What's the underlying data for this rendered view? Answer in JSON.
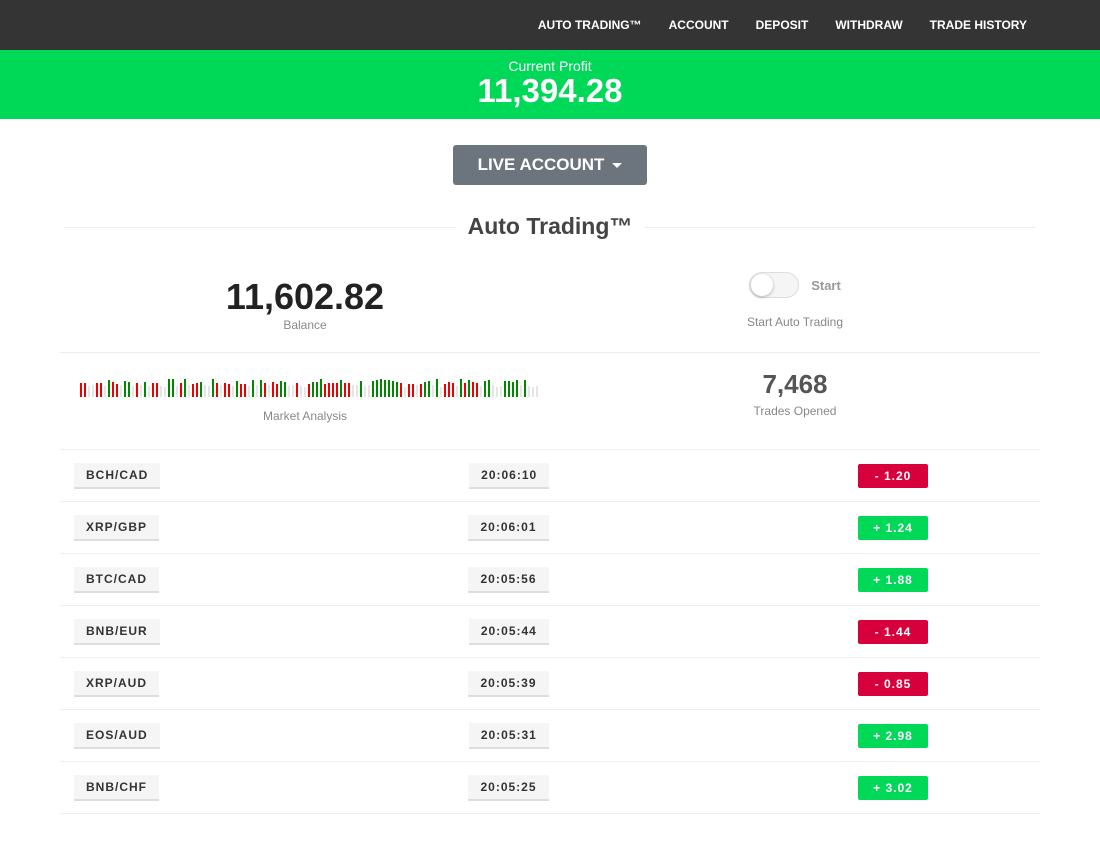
{
  "nav": [
    "AUTO TRADING™",
    "ACCOUNT",
    "DEPOSIT",
    "WITHDRAW",
    "TRADE HISTORY"
  ],
  "profit": {
    "label": "Current Profit",
    "value": "11,394.28"
  },
  "account_button": "LIVE ACCOUNT",
  "title": "Auto Trading™",
  "balance": {
    "value": "11,602.82",
    "label": "Balance"
  },
  "toggle": {
    "label": "Start",
    "caption": "Start Auto Trading",
    "on": false
  },
  "market": {
    "label": "Market Analysis"
  },
  "trades_opened": {
    "value": "7,468",
    "label": "Trades Opened"
  },
  "colors": {
    "green": "#00d957",
    "red": "#d8003c",
    "nav": "#343434"
  },
  "trades": [
    {
      "pair": "BCH/CAD",
      "time": "20:06:10",
      "pnl": "-  1.20",
      "dir": "down"
    },
    {
      "pair": "XRP/GBP",
      "time": "20:06:01",
      "pnl": "+  1.24",
      "dir": "up"
    },
    {
      "pair": "BTC/CAD",
      "time": "20:05:56",
      "pnl": "+  1.88",
      "dir": "up"
    },
    {
      "pair": "BNB/EUR",
      "time": "20:05:44",
      "pnl": "-  1.44",
      "dir": "down"
    },
    {
      "pair": "XRP/AUD",
      "time": "20:05:39",
      "pnl": "-  0.85",
      "dir": "down"
    },
    {
      "pair": "EOS/AUD",
      "time": "20:05:31",
      "pnl": "+  2.98",
      "dir": "up"
    },
    {
      "pair": "BNB/CHF",
      "time": "20:05:25",
      "pnl": "+  3.02",
      "dir": "up"
    }
  ]
}
